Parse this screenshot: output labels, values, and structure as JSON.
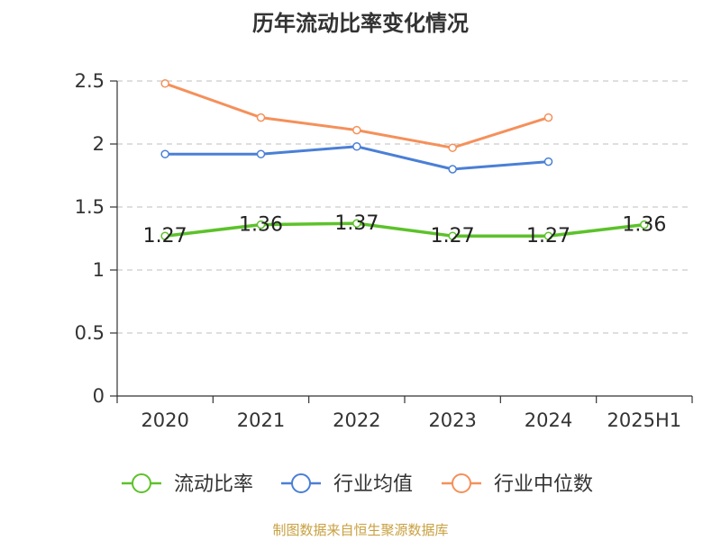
{
  "chart_data": {
    "type": "line",
    "title": "历年流动比率变化情况",
    "categories": [
      "2020",
      "2021",
      "2022",
      "2023",
      "2024",
      "2025H1"
    ],
    "ylim": [
      0,
      2.5
    ],
    "yticks": [
      "0",
      "0.5",
      "1",
      "1.5",
      "2",
      "2.5"
    ],
    "grid": true,
    "legend_position": "bottom",
    "series": [
      {
        "name": "流动比率",
        "color": "#5cc22a",
        "values": [
          1.27,
          1.36,
          1.37,
          1.27,
          1.27,
          1.36
        ],
        "labels": [
          "1.27",
          "1.36",
          "1.37",
          "1.27",
          "1.27",
          "1.36"
        ]
      },
      {
        "name": "行业均值",
        "color": "#4a7fd6",
        "values": [
          1.92,
          1.92,
          1.98,
          1.8,
          1.86,
          null
        ]
      },
      {
        "name": "行业中位数",
        "color": "#f5905a",
        "values": [
          2.48,
          2.21,
          2.11,
          1.97,
          2.21,
          null
        ]
      }
    ]
  },
  "footer": {
    "source": "制图数据来自恒生聚源数据库"
  }
}
